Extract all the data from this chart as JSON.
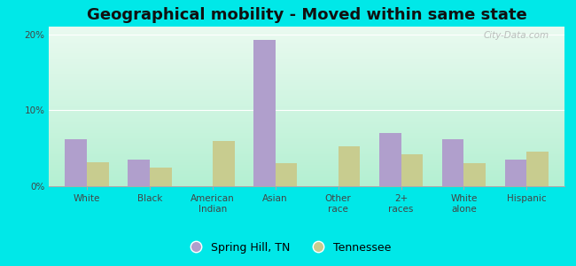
{
  "title": "Geographical mobility - Moved within same state",
  "categories": [
    "White",
    "Black",
    "American\nIndian",
    "Asian",
    "Other\nrace",
    "2+\nraces",
    "White\nalone",
    "Hispanic"
  ],
  "spring_hill_values": [
    6.2,
    3.5,
    0.0,
    19.3,
    0.0,
    7.0,
    6.2,
    3.5
  ],
  "tennessee_values": [
    3.1,
    2.4,
    6.0,
    3.0,
    5.2,
    4.2,
    3.0,
    4.6
  ],
  "spring_hill_color": "#b09fcc",
  "tennessee_color": "#c8cc8f",
  "spring_hill_label": "Spring Hill, TN",
  "tennessee_label": "Tennessee",
  "ylim": [
    0,
    21
  ],
  "yticks": [
    0,
    10,
    20
  ],
  "ytick_labels": [
    "0%",
    "10%",
    "20%"
  ],
  "gradient_top": "#eafaf0",
  "gradient_bottom": "#b8f0d8",
  "outer_background": "#00e8e8",
  "bar_width": 0.35,
  "title_fontsize": 13,
  "tick_fontsize": 7.5,
  "legend_fontsize": 9,
  "watermark_text": "City-Data.com"
}
